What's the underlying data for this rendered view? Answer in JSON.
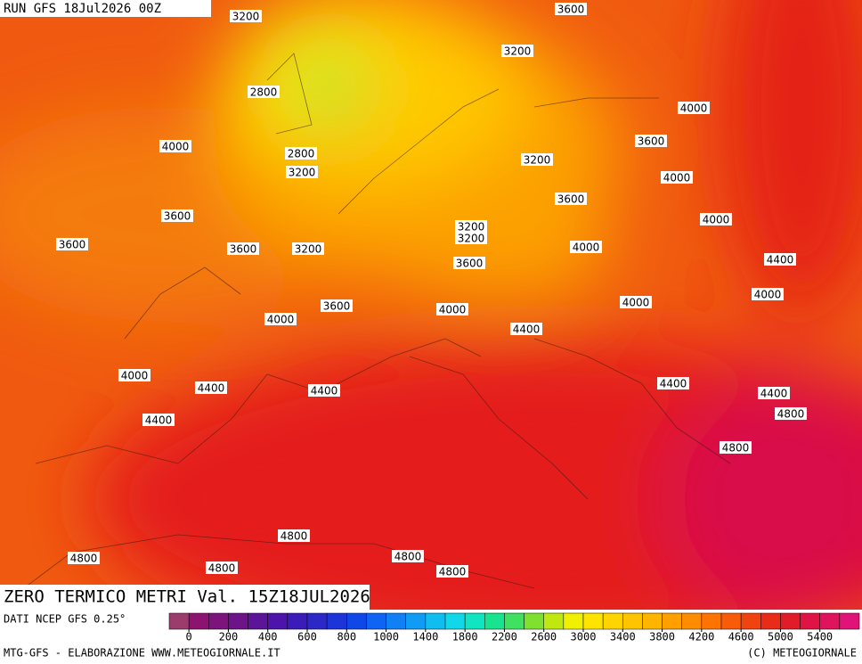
{
  "header": {
    "run": "RUN GFS 18Jul2026 00Z"
  },
  "map": {
    "title": "ZERO TERMICO METRI Val. 15Z18JUL2026",
    "contour_labels": [
      3200,
      3600,
      3200,
      2800,
      4000,
      4000,
      3600,
      2800,
      3200,
      3200,
      4000,
      3600,
      3600,
      4000,
      3200,
      3200,
      4000,
      3600,
      3600,
      3200,
      3600,
      4400,
      4000,
      4000,
      3600,
      4000,
      4000,
      4400,
      4000,
      4400,
      4400,
      4400,
      4400,
      4800,
      4400,
      4800,
      4800,
      4800,
      4800,
      4800,
      4800
    ]
  },
  "colorbar": {
    "source": "DATI NCEP GFS 0.25°",
    "colors": [
      "#9c3c6c",
      "#8c1470",
      "#7c147c",
      "#6c1488",
      "#5c1498",
      "#4c14a8",
      "#3c1cb8",
      "#2c28c8",
      "#1c34d8",
      "#1048e8",
      "#1064f4",
      "#1080f4",
      "#109cf4",
      "#10bcf0",
      "#10d8e8",
      "#10e4c0",
      "#18e490",
      "#40e060",
      "#80e030",
      "#c0e810",
      "#f0f000",
      "#ffe400",
      "#ffd400",
      "#ffc400",
      "#ffb400",
      "#ffa000",
      "#ff8c00",
      "#ff7400",
      "#f85c08",
      "#f04410",
      "#e82c18",
      "#e01c28",
      "#e01444",
      "#e0145c",
      "#e01478"
    ],
    "ticks": [
      0,
      200,
      400,
      600,
      800,
      1000,
      1400,
      1800,
      2200,
      2600,
      3000,
      3400,
      3800,
      4200,
      4600,
      5000,
      5400
    ]
  },
  "footer": {
    "left": "MTG-GFS - ELABORAZIONE WWW.METEOGIORNALE.IT",
    "right": "(C) METEOGIORNALE"
  }
}
